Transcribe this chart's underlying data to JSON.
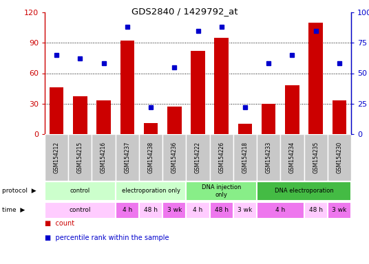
{
  "title": "GDS2840 / 1429792_at",
  "samples": [
    "GSM154212",
    "GSM154215",
    "GSM154216",
    "GSM154237",
    "GSM154238",
    "GSM154236",
    "GSM154222",
    "GSM154226",
    "GSM154218",
    "GSM154233",
    "GSM154234",
    "GSM154235",
    "GSM154230"
  ],
  "counts": [
    46,
    37,
    33,
    92,
    11,
    27,
    82,
    95,
    10,
    30,
    48,
    110,
    33
  ],
  "percentiles": [
    65,
    62,
    58,
    88,
    22,
    55,
    85,
    88,
    22,
    58,
    65,
    85,
    58
  ],
  "ylim_left": [
    0,
    120
  ],
  "ylim_right": [
    0,
    100
  ],
  "yticks_left": [
    0,
    30,
    60,
    90,
    120
  ],
  "yticks_right": [
    0,
    25,
    50,
    75,
    100
  ],
  "yticklabels_left": [
    "0",
    "30",
    "60",
    "90",
    "120"
  ],
  "yticklabels_right": [
    "0",
    "25",
    "50",
    "75",
    "100%"
  ],
  "bar_color": "#cc0000",
  "dot_color": "#0000cc",
  "grid_lines": [
    30,
    60,
    90
  ],
  "protocol_rows": [
    {
      "label": "control",
      "start": 0,
      "end": 3,
      "color": "#ccffcc"
    },
    {
      "label": "electroporation only",
      "start": 3,
      "end": 6,
      "color": "#ccffcc"
    },
    {
      "label": "DNA injection\nonly",
      "start": 6,
      "end": 9,
      "color": "#88ee88"
    },
    {
      "label": "DNA electroporation",
      "start": 9,
      "end": 13,
      "color": "#44bb44"
    }
  ],
  "time_rows": [
    {
      "label": "control",
      "start": 0,
      "end": 3,
      "color": "#ffccff"
    },
    {
      "label": "4 h",
      "start": 3,
      "end": 4,
      "color": "#ee77ee"
    },
    {
      "label": "48 h",
      "start": 4,
      "end": 5,
      "color": "#ffccff"
    },
    {
      "label": "3 wk",
      "start": 5,
      "end": 6,
      "color": "#ee77ee"
    },
    {
      "label": "4 h",
      "start": 6,
      "end": 7,
      "color": "#ffccff"
    },
    {
      "label": "48 h",
      "start": 7,
      "end": 8,
      "color": "#ee77ee"
    },
    {
      "label": "3 wk",
      "start": 8,
      "end": 9,
      "color": "#ffccff"
    },
    {
      "label": "4 h",
      "start": 9,
      "end": 11,
      "color": "#ee77ee"
    },
    {
      "label": "48 h",
      "start": 11,
      "end": 12,
      "color": "#ffccff"
    },
    {
      "label": "3 wk",
      "start": 12,
      "end": 13,
      "color": "#ee77ee"
    }
  ],
  "legend_items": [
    {
      "label": "count",
      "color": "#cc0000"
    },
    {
      "label": "percentile rank within the sample",
      "color": "#0000cc"
    }
  ],
  "cell_color": "#c8c8c8",
  "left_label_protocol": "protocol",
  "left_label_time": "time"
}
